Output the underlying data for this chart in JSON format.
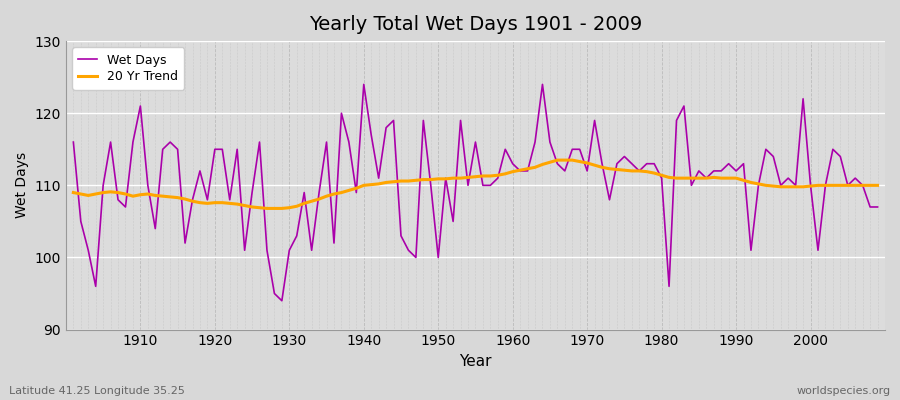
{
  "title": "Yearly Total Wet Days 1901 - 2009",
  "xlabel": "Year",
  "ylabel": "Wet Days",
  "subtitle_left": "Latitude 41.25 Longitude 35.25",
  "subtitle_right": "worldspecies.org",
  "ylim": [
    90,
    130
  ],
  "yticks": [
    90,
    100,
    110,
    120,
    130
  ],
  "fig_bg_color": "#d8d8d8",
  "plot_bg_color": "#dcdcdc",
  "wet_days_color": "#aa00aa",
  "trend_color": "#FFA500",
  "years": [
    1901,
    1902,
    1903,
    1904,
    1905,
    1906,
    1907,
    1908,
    1909,
    1910,
    1911,
    1912,
    1913,
    1914,
    1915,
    1916,
    1917,
    1918,
    1919,
    1920,
    1921,
    1922,
    1923,
    1924,
    1925,
    1926,
    1927,
    1928,
    1929,
    1930,
    1931,
    1932,
    1933,
    1934,
    1935,
    1936,
    1937,
    1938,
    1939,
    1940,
    1941,
    1942,
    1943,
    1944,
    1945,
    1946,
    1947,
    1948,
    1949,
    1950,
    1951,
    1952,
    1953,
    1954,
    1955,
    1956,
    1957,
    1958,
    1959,
    1960,
    1961,
    1962,
    1963,
    1964,
    1965,
    1966,
    1967,
    1968,
    1969,
    1970,
    1971,
    1972,
    1973,
    1974,
    1975,
    1976,
    1977,
    1978,
    1979,
    1980,
    1981,
    1982,
    1983,
    1984,
    1985,
    1986,
    1987,
    1988,
    1989,
    1990,
    1991,
    1992,
    1993,
    1994,
    1995,
    1996,
    1997,
    1998,
    1999,
    2000,
    2001,
    2002,
    2003,
    2004,
    2005,
    2006,
    2007,
    2008,
    2009
  ],
  "wet_days": [
    116,
    105,
    101,
    96,
    110,
    116,
    108,
    107,
    116,
    121,
    110,
    104,
    115,
    116,
    115,
    102,
    108,
    112,
    108,
    115,
    115,
    108,
    115,
    101,
    109,
    116,
    101,
    95,
    94,
    101,
    103,
    109,
    101,
    109,
    116,
    102,
    120,
    116,
    109,
    124,
    117,
    111,
    118,
    119,
    103,
    101,
    100,
    119,
    110,
    100,
    111,
    105,
    119,
    110,
    116,
    110,
    110,
    111,
    115,
    113,
    112,
    112,
    116,
    124,
    116,
    113,
    112,
    115,
    115,
    112,
    119,
    113,
    108,
    113,
    114,
    113,
    112,
    113,
    113,
    111,
    96,
    119,
    121,
    110,
    112,
    111,
    112,
    112,
    113,
    112,
    113,
    101,
    110,
    115,
    114,
    110,
    111,
    110,
    122,
    110,
    101,
    110,
    115,
    114,
    110,
    111,
    110,
    107,
    107
  ],
  "trend": [
    109.0,
    108.8,
    108.6,
    108.8,
    109.0,
    109.1,
    109.0,
    108.8,
    108.5,
    108.7,
    108.8,
    108.6,
    108.5,
    108.4,
    108.3,
    108.1,
    107.8,
    107.6,
    107.5,
    107.6,
    107.6,
    107.5,
    107.4,
    107.2,
    107.0,
    106.9,
    106.8,
    106.8,
    106.8,
    106.9,
    107.1,
    107.5,
    107.8,
    108.1,
    108.5,
    108.8,
    109.0,
    109.3,
    109.6,
    110.0,
    110.1,
    110.2,
    110.4,
    110.5,
    110.6,
    110.6,
    110.7,
    110.8,
    110.8,
    110.9,
    110.9,
    111.0,
    111.0,
    111.1,
    111.2,
    111.3,
    111.3,
    111.4,
    111.6,
    111.9,
    112.1,
    112.3,
    112.5,
    112.9,
    113.2,
    113.5,
    113.5,
    113.5,
    113.3,
    113.1,
    112.8,
    112.5,
    112.3,
    112.2,
    112.1,
    112.0,
    112.0,
    111.9,
    111.7,
    111.4,
    111.1,
    111.0,
    111.0,
    111.0,
    111.0,
    111.0,
    111.1,
    111.0,
    111.0,
    111.0,
    110.7,
    110.4,
    110.2,
    110.0,
    109.9,
    109.8,
    109.8,
    109.8,
    109.8,
    109.9,
    110.0,
    110.0,
    110.0,
    110.0,
    110.0,
    110.0,
    110.0,
    110.0,
    110.0
  ]
}
